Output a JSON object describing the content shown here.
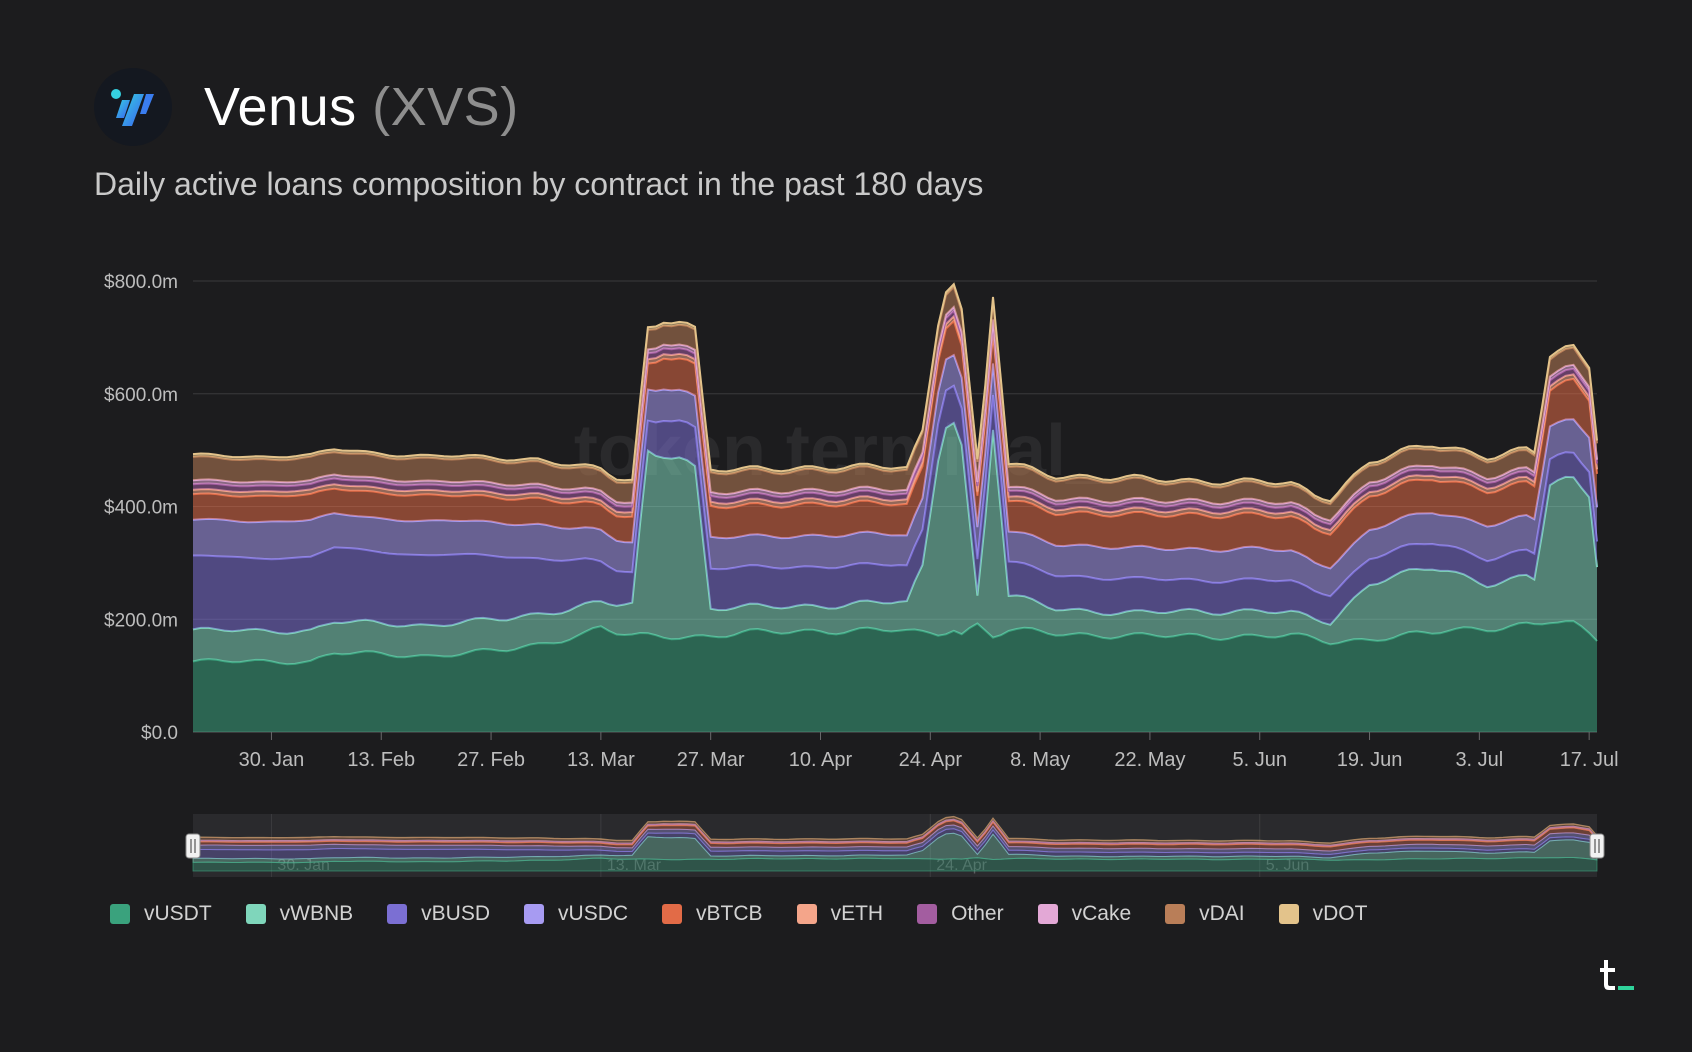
{
  "header": {
    "title": "Venus",
    "ticker": "(XVS)",
    "subtitle": "Daily active loans composition by contract in the past 180 days"
  },
  "colors": {
    "background": "#1c1c1e",
    "grid": "#3a3a3c",
    "axis_text": "#bdbdbd"
  },
  "chart_data": {
    "type": "area",
    "stacked": true,
    "title": "Daily active loans composition by contract in the past 180 days",
    "ylim": [
      0,
      800
    ],
    "y_unit": "$m",
    "y_ticks": [
      0,
      200,
      400,
      600,
      800
    ],
    "y_tick_labels": [
      "$0.0",
      "$200.0m",
      "$400.0m",
      "$600.0m",
      "$800.0m"
    ],
    "x_tick_labels": [
      "30. Jan",
      "13. Feb",
      "27. Feb",
      "13. Mar",
      "27. Mar",
      "10. Apr",
      "24. Apr",
      "8. May",
      "22. May",
      "5. Jun",
      "19. Jun",
      "3. Jul",
      "17. Jul"
    ],
    "x_tick_days": [
      10,
      24,
      38,
      52,
      66,
      80,
      94,
      108,
      122,
      136,
      150,
      164,
      178
    ],
    "x_range_days": [
      0,
      179
    ],
    "keyframe_days": [
      0,
      15,
      18,
      30,
      40,
      44,
      50,
      52,
      54,
      56,
      58,
      60,
      62,
      64,
      66,
      70,
      80,
      90,
      91,
      93,
      95,
      96,
      97,
      98,
      100,
      101,
      102,
      104,
      110,
      120,
      128,
      136,
      140,
      143,
      145,
      150,
      158,
      160,
      165,
      170,
      171,
      173,
      176,
      178,
      179
    ],
    "grid": true,
    "legend_position": "bottom-left",
    "navigator": {
      "tick_labels": [
        "30. Jan",
        "13. Mar",
        "24. Apr",
        "5. Jun"
      ]
    },
    "series": [
      {
        "name": "vUSDT",
        "color": "#3aa27d",
        "values": [
          125,
          125,
          140,
          135,
          145,
          155,
          175,
          185,
          175,
          170,
          170,
          170,
          170,
          170,
          170,
          175,
          180,
          180,
          178,
          175,
          175,
          180,
          185,
          175,
          190,
          180,
          170,
          180,
          175,
          170,
          170,
          170,
          170,
          165,
          160,
          165,
          175,
          180,
          185,
          190,
          190,
          195,
          190,
          175,
          165
        ]
      },
      {
        "name": "vWBNB",
        "color": "#7fd6bb",
        "values": [
          55,
          55,
          55,
          55,
          55,
          55,
          50,
          45,
          50,
          55,
          330,
          330,
          320,
          300,
          50,
          45,
          45,
          50,
          50,
          120,
          320,
          370,
          365,
          330,
          50,
          200,
          370,
          60,
          45,
          40,
          45,
          45,
          40,
          35,
          35,
          100,
          115,
          105,
          80,
          85,
          80,
          240,
          255,
          250,
          135
        ]
      },
      {
        "name": "vBUSD",
        "color": "#7b6fd3",
        "values": [
          130,
          130,
          130,
          125,
          110,
          100,
          80,
          70,
          60,
          55,
          55,
          65,
          65,
          70,
          70,
          70,
          70,
          65,
          65,
          65,
          65,
          65,
          65,
          65,
          65,
          60,
          60,
          60,
          60,
          60,
          55,
          55,
          55,
          50,
          50,
          45,
          45,
          45,
          45,
          45,
          45,
          45,
          45,
          45,
          45
        ]
      },
      {
        "name": "vUSDC",
        "color": "#a79bf2",
        "values": [
          65,
          65,
          60,
          60,
          60,
          60,
          55,
          55,
          55,
          55,
          55,
          55,
          55,
          55,
          55,
          55,
          55,
          55,
          55,
          55,
          55,
          55,
          55,
          55,
          55,
          55,
          55,
          55,
          55,
          55,
          55,
          55,
          55,
          50,
          50,
          50,
          55,
          55,
          60,
          60,
          60,
          60,
          60,
          60,
          60
        ]
      },
      {
        "name": "vBTCB",
        "color": "#e26b47",
        "values": [
          45,
          45,
          45,
          45,
          45,
          45,
          45,
          45,
          45,
          45,
          45,
          55,
          55,
          55,
          55,
          55,
          55,
          55,
          55,
          55,
          55,
          55,
          60,
          55,
          55,
          55,
          55,
          55,
          55,
          60,
          60,
          60,
          60,
          60,
          60,
          60,
          60,
          60,
          60,
          60,
          60,
          65,
          70,
          65,
          60
        ]
      },
      {
        "name": "vETH",
        "color": "#f4a58a",
        "values": [
          8,
          8,
          8,
          8,
          8,
          8,
          8,
          8,
          8,
          8,
          8,
          8,
          8,
          8,
          8,
          8,
          8,
          8,
          8,
          8,
          8,
          8,
          8,
          8,
          8,
          8,
          8,
          8,
          8,
          8,
          8,
          8,
          8,
          8,
          8,
          8,
          8,
          8,
          8,
          8,
          8,
          8,
          8,
          8,
          8
        ]
      },
      {
        "name": "Other",
        "color": "#a35da0",
        "values": [
          10,
          10,
          10,
          10,
          10,
          10,
          10,
          10,
          10,
          10,
          10,
          10,
          10,
          10,
          10,
          10,
          10,
          10,
          10,
          10,
          10,
          10,
          10,
          10,
          10,
          10,
          10,
          10,
          10,
          10,
          10,
          10,
          10,
          10,
          10,
          10,
          10,
          10,
          10,
          10,
          10,
          10,
          10,
          10,
          10
        ]
      },
      {
        "name": "vCake",
        "color": "#e3a8d6",
        "values": [
          7,
          7,
          7,
          7,
          7,
          7,
          7,
          7,
          7,
          7,
          7,
          7,
          7,
          7,
          7,
          7,
          7,
          7,
          7,
          7,
          7,
          7,
          7,
          7,
          7,
          7,
          7,
          7,
          7,
          7,
          7,
          7,
          7,
          7,
          7,
          7,
          7,
          7,
          7,
          7,
          7,
          7,
          7,
          7,
          7
        ]
      },
      {
        "name": "vDAI",
        "color": "#b97e58",
        "values": [
          40,
          40,
          40,
          40,
          40,
          40,
          35,
          35,
          35,
          35,
          35,
          35,
          35,
          35,
          35,
          35,
          35,
          35,
          35,
          35,
          35,
          35,
          35,
          35,
          35,
          35,
          35,
          35,
          35,
          35,
          30,
          30,
          30,
          30,
          30,
          30,
          30,
          30,
          30,
          30,
          30,
          30,
          30,
          30,
          30
        ]
      },
      {
        "name": "vDOT",
        "color": "#e3c38b",
        "values": [
          5,
          5,
          5,
          5,
          5,
          5,
          5,
          5,
          5,
          5,
          5,
          5,
          5,
          5,
          5,
          5,
          5,
          5,
          5,
          5,
          5,
          5,
          5,
          5,
          5,
          5,
          5,
          5,
          5,
          5,
          5,
          5,
          5,
          5,
          5,
          5,
          5,
          5,
          5,
          5,
          5,
          5,
          5,
          5,
          5
        ]
      }
    ]
  }
}
